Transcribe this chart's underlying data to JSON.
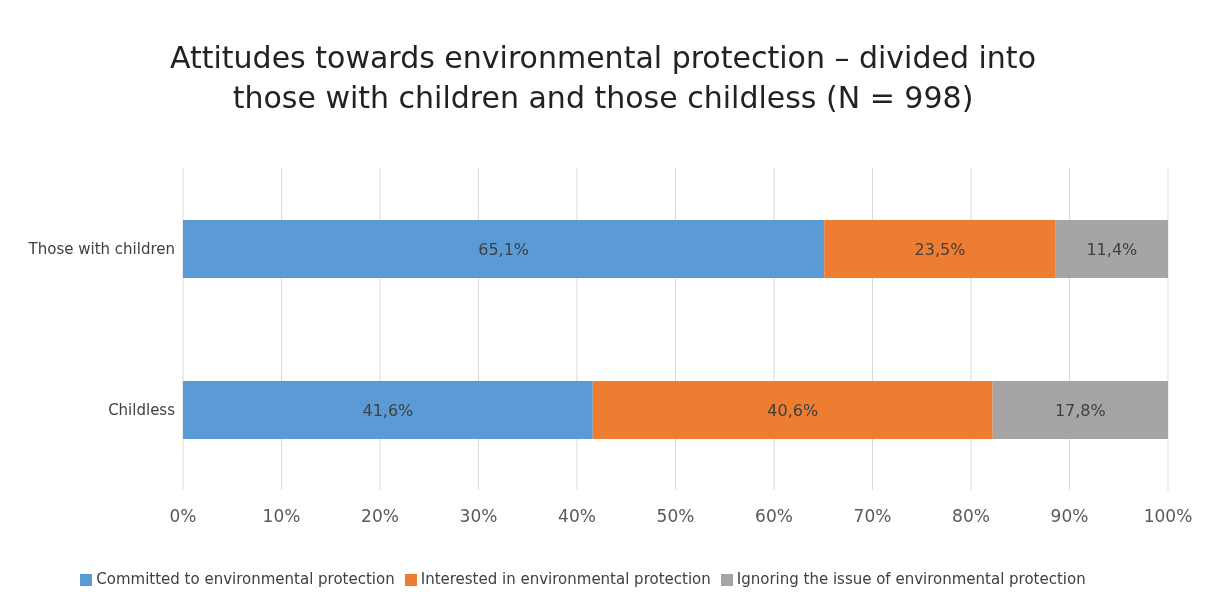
{
  "chart_data": {
    "type": "bar",
    "orientation": "horizontal",
    "stacked": true,
    "title": "Attitudes towards environmental protection – divided into those with children and those childless (N = 998)",
    "categories": [
      "Those with children",
      "Childless"
    ],
    "series": [
      {
        "name": "Committed to environmental protection",
        "color": "#5b9bd5",
        "values": [
          65.1,
          41.6
        ],
        "value_labels": [
          "65,1%",
          "41,6%"
        ]
      },
      {
        "name": "Interested in environmental protection",
        "color": "#ed7d31",
        "values": [
          23.5,
          40.6
        ],
        "value_labels": [
          "23,5%",
          "40,6%"
        ]
      },
      {
        "name": "Ignoring the issue of environmental protection",
        "color": "#a5a5a5",
        "values": [
          11.4,
          17.8
        ],
        "value_labels": [
          "11,4%",
          "17,8%"
        ]
      }
    ],
    "xlim": [
      0,
      100
    ],
    "xticks": [
      {
        "value": 0,
        "label": "0%"
      },
      {
        "value": 10,
        "label": "10%"
      },
      {
        "value": 20,
        "label": "20%"
      },
      {
        "value": 30,
        "label": "30%"
      },
      {
        "value": 40,
        "label": "40%"
      },
      {
        "value": 50,
        "label": "50%"
      },
      {
        "value": 60,
        "label": "60%"
      },
      {
        "value": 70,
        "label": "70%"
      },
      {
        "value": 80,
        "label": "80%"
      },
      {
        "value": 90,
        "label": "90%"
      },
      {
        "value": 100,
        "label": "100%"
      }
    ],
    "grid": "x",
    "legend": "bottom"
  }
}
